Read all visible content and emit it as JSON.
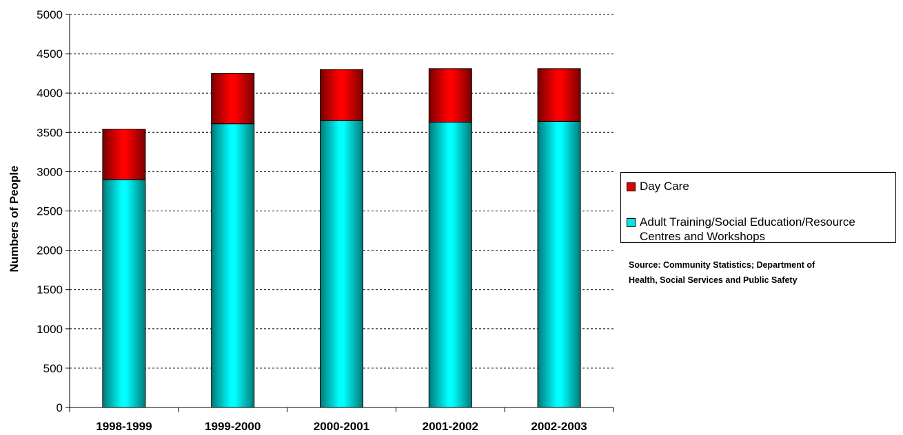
{
  "chart_data": {
    "type": "bar",
    "stacked": true,
    "categories": [
      "1998-1999",
      "1999-2000",
      "2000-2001",
      "2001-2002",
      "2002-2003"
    ],
    "series": [
      {
        "name": "Adult Training/Social Education/Resource Centres and Workshops",
        "color": "#00e5e5",
        "values": [
          2900,
          3610,
          3650,
          3630,
          3640
        ]
      },
      {
        "name": "Day Care",
        "color": "#e00000",
        "values": [
          640,
          640,
          650,
          680,
          670
        ]
      }
    ],
    "xlabel": "",
    "ylabel": "Numbers of People",
    "ylim": [
      0,
      5000
    ],
    "yticks": [
      0,
      500,
      1000,
      1500,
      2000,
      2500,
      3000,
      3500,
      4000,
      4500,
      5000
    ],
    "grid": true,
    "legend_position": "right",
    "legend_order": [
      "Day Care",
      "Adult Training/Social Education/Resource Centres and Workshops"
    ],
    "legend": {
      "day_care": "Day Care",
      "adult_line1": "Adult Training/Social Education/Resource",
      "adult_line2": "Centres and Workshops"
    },
    "source_note": {
      "line1": "Source: Community Statistics; Department of",
      "line2": "Health, Social Services and Public Safety"
    }
  }
}
